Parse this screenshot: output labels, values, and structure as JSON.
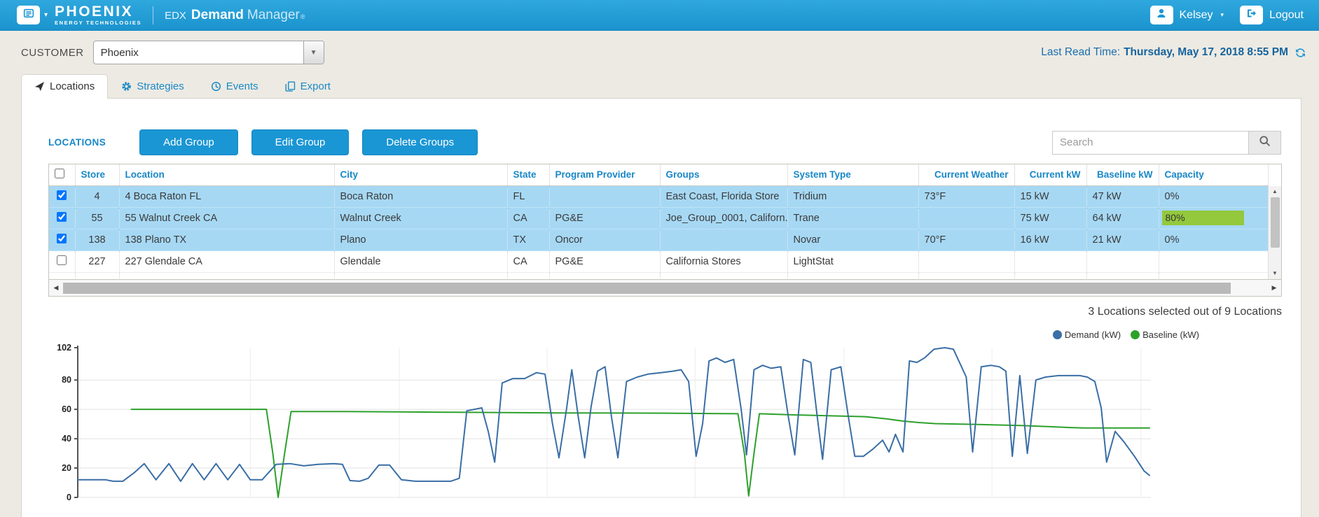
{
  "header": {
    "logo": {
      "title": "PHOENIX",
      "subtitle": "ENERGY TECHNOLOGIES"
    },
    "product": {
      "prefix": "EDX",
      "name": "Demand",
      "suffix": "Manager",
      "registered": "®"
    },
    "user": {
      "name": "Kelsey"
    },
    "logout_label": "Logout"
  },
  "customer_bar": {
    "label": "CUSTOMER",
    "selected_customer": "Phoenix",
    "last_read_label": "Last Read Time:",
    "last_read_value": "Thursday, May 17, 2018 8:55 PM"
  },
  "tabs": [
    {
      "label": "Locations",
      "icon": "location-arrow-icon",
      "active": true
    },
    {
      "label": "Strategies",
      "icon": "gear-icon",
      "active": false
    },
    {
      "label": "Events",
      "icon": "clock-icon",
      "active": false
    },
    {
      "label": "Export",
      "icon": "export-icon",
      "active": false
    }
  ],
  "locations_panel": {
    "title": "LOCATIONS",
    "buttons": [
      "Add Group",
      "Edit Group",
      "Delete Groups"
    ],
    "search_placeholder": "Search",
    "selection_summary": "3 Locations selected out of 9 Locations"
  },
  "table": {
    "columns": [
      "Store",
      "Location",
      "City",
      "State",
      "Program Provider",
      "Groups",
      "System Type",
      "Current Weather",
      "Current kW",
      "Baseline kW",
      "Capacity"
    ],
    "rows": [
      {
        "checked": true,
        "selected": true,
        "store": "4",
        "location": "4 Boca Raton FL",
        "city": "Boca Raton",
        "state": "FL",
        "program_provider": "",
        "groups": "East Coast, Florida Store",
        "system_type": "Tridium",
        "current_weather": "73°F",
        "current_kw": "15 kW",
        "baseline_kw": "47 kW",
        "capacity": "0%",
        "capacity_pct": 0
      },
      {
        "checked": true,
        "selected": true,
        "store": "55",
        "location": "55 Walnut Creek CA",
        "city": "Walnut Creek",
        "state": "CA",
        "program_provider": "PG&E",
        "groups": "Joe_Group_0001, Californ...",
        "system_type": "Trane",
        "current_weather": "",
        "current_kw": "75 kW",
        "baseline_kw": "64 kW",
        "capacity": "80%",
        "capacity_pct": 80
      },
      {
        "checked": true,
        "selected": true,
        "store": "138",
        "location": "138 Plano TX",
        "city": "Plano",
        "state": "TX",
        "program_provider": "Oncor",
        "groups": "",
        "system_type": "Novar",
        "current_weather": "70°F",
        "current_kw": "16 kW",
        "baseline_kw": "21 kW",
        "capacity": "0%",
        "capacity_pct": 0
      },
      {
        "checked": false,
        "selected": false,
        "store": "227",
        "location": "227 Glendale CA",
        "city": "Glendale",
        "state": "CA",
        "program_provider": "PG&E",
        "groups": "California Stores",
        "system_type": "LightStat",
        "current_weather": "",
        "current_kw": "",
        "baseline_kw": "",
        "capacity": "",
        "capacity_pct": null
      }
    ]
  },
  "colors": {
    "header_blue_top": "#2fa8de",
    "header_blue_bottom": "#1b93cd",
    "accent_blue": "#1a96d4",
    "link_blue": "#1887c6",
    "selected_row": "#a6d8f4",
    "capacity_green": "#94c83d",
    "demand_line": "#3a6ea5",
    "baseline_line": "#2da02c"
  },
  "chart_data": {
    "type": "line",
    "title": "",
    "xlabel": "",
    "ylabel": "",
    "ylim": [
      0,
      102
    ],
    "yticks": [
      0,
      20,
      40,
      60,
      80,
      102
    ],
    "grid": true,
    "legend_position": "top-right",
    "x_unit": "percent_of_time_axis",
    "series": [
      {
        "name": "Demand (kW)",
        "color": "#3a6ea5",
        "points": [
          [
            0,
            12
          ],
          [
            2.6,
            12
          ],
          [
            3.3,
            11
          ],
          [
            4.2,
            11
          ],
          [
            5.3,
            17
          ],
          [
            6.2,
            23
          ],
          [
            7.3,
            12
          ],
          [
            8.5,
            23
          ],
          [
            9.6,
            11
          ],
          [
            10.7,
            23
          ],
          [
            11.8,
            12
          ],
          [
            12.9,
            23
          ],
          [
            14,
            12
          ],
          [
            15.1,
            22.5
          ],
          [
            16.1,
            12
          ],
          [
            17.2,
            12
          ],
          [
            18.5,
            22.5
          ],
          [
            19.8,
            23
          ],
          [
            21.1,
            21.5
          ],
          [
            22.4,
            22.5
          ],
          [
            23.9,
            23
          ],
          [
            24.7,
            22.5
          ],
          [
            25.4,
            11.5
          ],
          [
            26.3,
            11
          ],
          [
            27.1,
            13
          ],
          [
            28.1,
            22
          ],
          [
            29.1,
            22
          ],
          [
            30.2,
            12
          ],
          [
            31.5,
            11
          ],
          [
            33,
            11
          ],
          [
            34.8,
            11
          ],
          [
            35.6,
            13
          ],
          [
            36.3,
            59
          ],
          [
            37,
            60
          ],
          [
            37.7,
            61
          ],
          [
            38.3,
            45
          ],
          [
            38.9,
            24
          ],
          [
            39.6,
            78
          ],
          [
            40.6,
            81
          ],
          [
            41.7,
            81
          ],
          [
            42.8,
            85
          ],
          [
            43.6,
            84
          ],
          [
            44.3,
            50
          ],
          [
            44.9,
            27
          ],
          [
            45.6,
            60
          ],
          [
            46.1,
            87
          ],
          [
            46.7,
            55
          ],
          [
            47.3,
            27
          ],
          [
            47.9,
            62
          ],
          [
            48.5,
            86
          ],
          [
            49.2,
            89
          ],
          [
            49.8,
            55
          ],
          [
            50.4,
            27
          ],
          [
            51.2,
            79
          ],
          [
            52.2,
            82
          ],
          [
            53.2,
            84
          ],
          [
            54.4,
            85
          ],
          [
            55.5,
            86
          ],
          [
            56.3,
            87
          ],
          [
            57,
            79
          ],
          [
            57.7,
            28
          ],
          [
            58.3,
            50
          ],
          [
            58.9,
            93
          ],
          [
            59.6,
            95
          ],
          [
            60.4,
            92
          ],
          [
            61.2,
            94
          ],
          [
            61.9,
            60
          ],
          [
            62.4,
            29
          ],
          [
            63.1,
            87
          ],
          [
            63.9,
            90
          ],
          [
            64.7,
            88
          ],
          [
            65.6,
            89
          ],
          [
            66.3,
            55
          ],
          [
            66.9,
            29
          ],
          [
            67.7,
            94
          ],
          [
            68.4,
            92
          ],
          [
            69,
            55
          ],
          [
            69.5,
            26
          ],
          [
            70.3,
            87
          ],
          [
            71.2,
            89
          ],
          [
            71.9,
            55
          ],
          [
            72.5,
            28
          ],
          [
            73.3,
            28
          ],
          [
            74.2,
            33
          ],
          [
            75.1,
            39
          ],
          [
            75.7,
            31
          ],
          [
            76.3,
            43
          ],
          [
            77,
            31
          ],
          [
            77.6,
            93
          ],
          [
            78.3,
            92
          ],
          [
            79,
            95
          ],
          [
            79.9,
            101
          ],
          [
            80.9,
            102
          ],
          [
            81.7,
            101
          ],
          [
            82.4,
            90
          ],
          [
            82.9,
            82
          ],
          [
            83.5,
            31
          ],
          [
            84.3,
            89
          ],
          [
            85.2,
            90
          ],
          [
            86,
            89
          ],
          [
            86.6,
            86
          ],
          [
            87.2,
            28
          ],
          [
            87.9,
            83
          ],
          [
            88.6,
            30
          ],
          [
            89.4,
            80
          ],
          [
            90.3,
            82
          ],
          [
            91.5,
            83
          ],
          [
            92.6,
            83
          ],
          [
            93.5,
            83
          ],
          [
            94.2,
            82
          ],
          [
            94.9,
            79
          ],
          [
            95.5,
            61
          ],
          [
            96,
            24
          ],
          [
            96.8,
            45
          ],
          [
            97.6,
            38
          ],
          [
            98.6,
            28
          ],
          [
            99.5,
            18
          ],
          [
            100,
            15
          ]
        ]
      },
      {
        "name": "Baseline (kW)",
        "color": "#2da02c",
        "points": [
          [
            5,
            60
          ],
          [
            17.6,
            60
          ],
          [
            18.2,
            30
          ],
          [
            18.7,
            0
          ],
          [
            19.3,
            30
          ],
          [
            19.9,
            58.5
          ],
          [
            25,
            58.5
          ],
          [
            30,
            58.3
          ],
          [
            35,
            58
          ],
          [
            40,
            57.8
          ],
          [
            45,
            57.6
          ],
          [
            50,
            57.5
          ],
          [
            55,
            57.4
          ],
          [
            58,
            57.2
          ],
          [
            61.6,
            57
          ],
          [
            62.2,
            30
          ],
          [
            62.6,
            1
          ],
          [
            63.1,
            30
          ],
          [
            63.6,
            57
          ],
          [
            67,
            56.2
          ],
          [
            70,
            55.6
          ],
          [
            73.5,
            55
          ],
          [
            75.5,
            53.5
          ],
          [
            77,
            52
          ],
          [
            78.5,
            51
          ],
          [
            80,
            50.3
          ],
          [
            82,
            50
          ],
          [
            85,
            49.5
          ],
          [
            88,
            49
          ],
          [
            90.5,
            48.3
          ],
          [
            92.5,
            47.6
          ],
          [
            94,
            47.3
          ],
          [
            100,
            47.3
          ]
        ]
      }
    ]
  }
}
